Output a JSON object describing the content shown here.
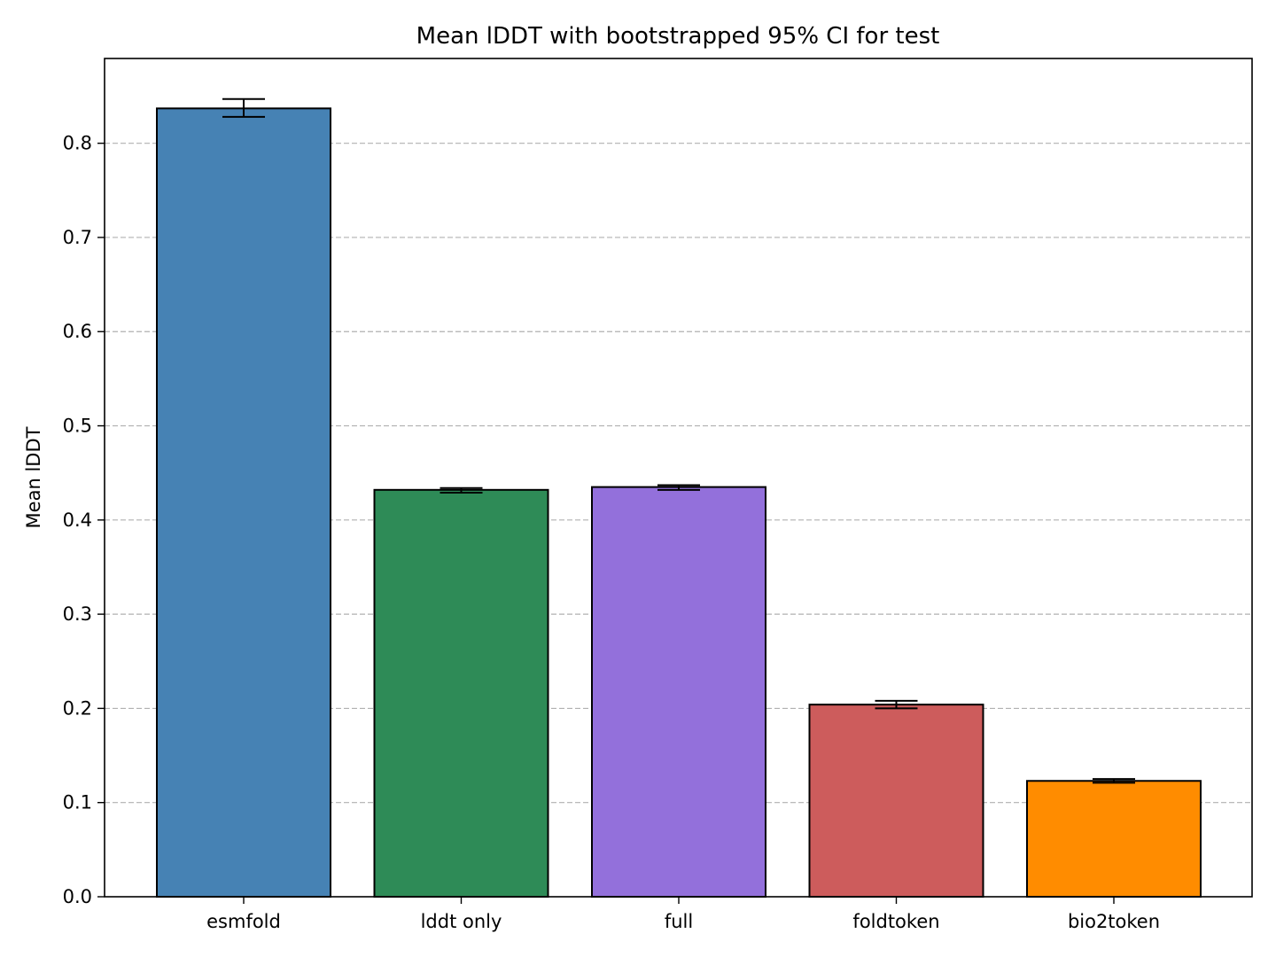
{
  "chart_data": {
    "type": "bar",
    "title": "Mean lDDT with bootstrapped 95% CI for test",
    "xlabel": "",
    "ylabel": "Mean lDDT",
    "categories": [
      "esmfold",
      "lddt only",
      "full",
      "foldtoken",
      "bio2token"
    ],
    "values": [
      0.837,
      0.432,
      0.435,
      0.204,
      0.123
    ],
    "ci_lower": [
      0.828,
      0.429,
      0.432,
      0.2,
      0.121
    ],
    "ci_upper": [
      0.847,
      0.434,
      0.437,
      0.208,
      0.125
    ],
    "colors": [
      "#4682b4",
      "#2e8b57",
      "#9370db",
      "#cd5c5c",
      "#ff8c00"
    ],
    "ylim": [
      0.0,
      0.89
    ],
    "yticks": [
      "0.0",
      "0.1",
      "0.2",
      "0.3",
      "0.4",
      "0.5",
      "0.6",
      "0.7",
      "0.8"
    ],
    "grid": "y-dashed"
  }
}
